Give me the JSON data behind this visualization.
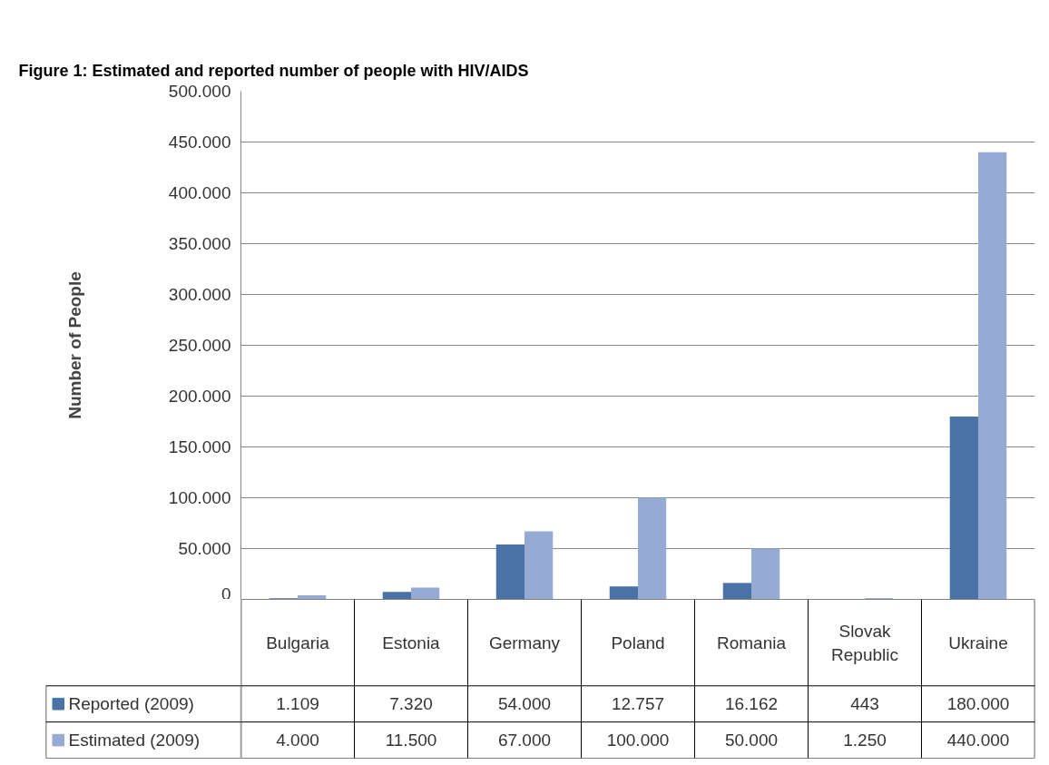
{
  "chart_data": {
    "type": "bar",
    "title": "Figure 1: Estimated and reported number of people with HIV/AIDS",
    "ylabel": "Number of People",
    "categories": [
      "Bulgaria",
      "Estonia",
      "Germany",
      "Poland",
      "Romania",
      "Slovak Republic",
      "Ukraine"
    ],
    "series": [
      {
        "name": "Reported (2009)",
        "color": "#4a72a6",
        "values": [
          1109,
          7320,
          54000,
          12757,
          16162,
          443,
          180000
        ],
        "value_labels": [
          "1.109",
          "7.320",
          "54.000",
          "12.757",
          "16.162",
          "443",
          "180.000"
        ]
      },
      {
        "name": "Estimated (2009)",
        "color": "#95abd3",
        "values": [
          4000,
          11500,
          67000,
          100000,
          50000,
          1250,
          440000
        ],
        "value_labels": [
          "4.000",
          "11.500",
          "67.000",
          "100.000",
          "50.000",
          "1.250",
          "440.000"
        ]
      }
    ],
    "ylim": [
      0,
      500000
    ],
    "yticks": [
      {
        "value": 0,
        "label": "0"
      },
      {
        "value": 50000,
        "label": "50.000"
      },
      {
        "value": 100000,
        "label": "100.000"
      },
      {
        "value": 150000,
        "label": "150.000"
      },
      {
        "value": 200000,
        "label": "200.000"
      },
      {
        "value": 250000,
        "label": "250.000"
      },
      {
        "value": 300000,
        "label": "300.000"
      },
      {
        "value": 350000,
        "label": "350.000"
      },
      {
        "value": 400000,
        "label": "400.000"
      },
      {
        "value": 450000,
        "label": "450.000"
      },
      {
        "value": 500000,
        "label": "500.000"
      }
    ],
    "grid": "y",
    "legend": "bottom"
  }
}
